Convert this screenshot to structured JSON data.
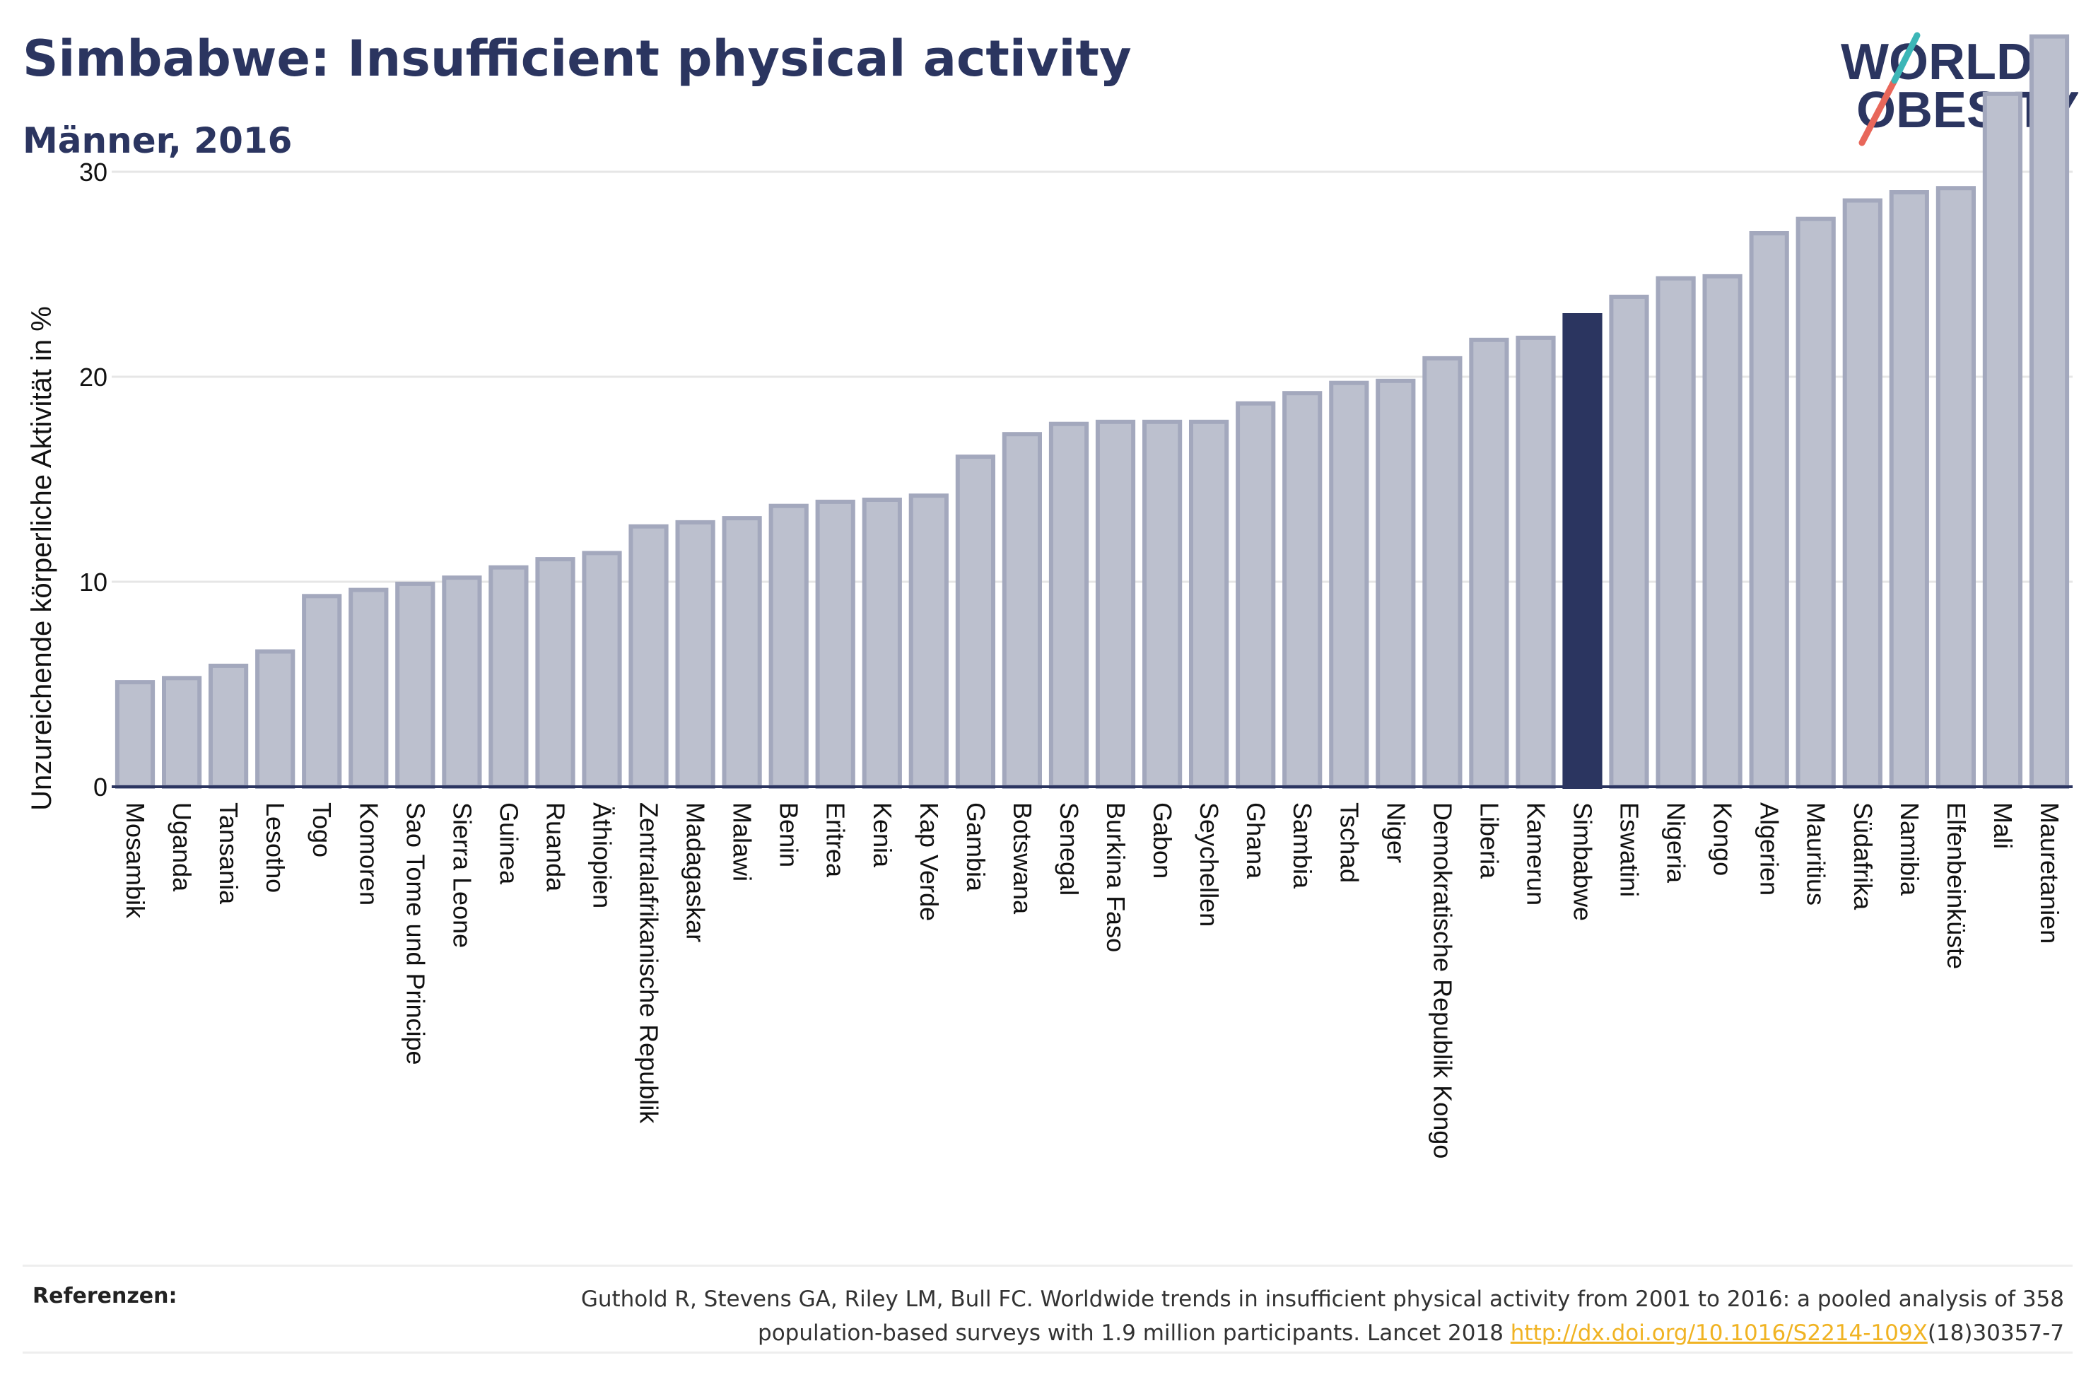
{
  "header": {
    "title": "Simbabwe: Insufficient physical activity",
    "subtitle": "Männer, 2016"
  },
  "logo": {
    "line1": "WORLD",
    "line2": "OBESITY",
    "colors": {
      "text": "#2b3560",
      "slash_red": "#e8675a",
      "slash_teal": "#3cb6b7"
    }
  },
  "footer": {
    "label": "Referenzen:",
    "citation_line1": "Guthold R, Stevens GA, Riley LM, Bull FC. Worldwide trends in insufficient physical activity from 2001 to 2016: a pooled analysis of 358",
    "citation_line2_pre": "population-based surveys with 1.9 million participants. Lancet 2018 ",
    "citation_link": "http://dx.doi.org/10.1016/S2214-109X",
    "citation_line2_post": "(18)30357-7"
  },
  "chart_data": {
    "type": "bar",
    "ylabel": "Unzureichende körperliche Aktivität in %",
    "ylim": [
      0,
      38
    ],
    "yticks": [
      0,
      10,
      20,
      30
    ],
    "grid": true,
    "highlight": "Simbabwe",
    "colors": {
      "bar": "#bcc0ce",
      "bar_edge": "#a3a8bd",
      "highlight": "#2b3560",
      "axis": "#2b3560",
      "grid": "#e6e6e6"
    },
    "categories": [
      "Mosambik",
      "Uganda",
      "Tansania",
      "Lesotho",
      "Togo",
      "Komoren",
      "Sao Tome und Principe",
      "Sierra Leone",
      "Guinea",
      "Ruanda",
      "Äthiopien",
      "Zentralafrikanische Republik",
      "Madagaskar",
      "Malawi",
      "Benin",
      "Eritrea",
      "Kenia",
      "Kap Verde",
      "Gambia",
      "Botswana",
      "Senegal",
      "Burkina Faso",
      "Gabon",
      "Seychellen",
      "Ghana",
      "Sambia",
      "Tschad",
      "Niger",
      "Demokratische Republik Kongo",
      "Liberia",
      "Kamerun",
      "Simbabwe",
      "Eswatini",
      "Nigeria",
      "Kongo",
      "Algerien",
      "Mauritius",
      "Südafrika",
      "Namibia",
      "Elfenbeinküste",
      "Mali",
      "Mauretanien"
    ],
    "values": [
      5.1,
      5.3,
      5.9,
      6.6,
      9.3,
      9.6,
      9.9,
      10.2,
      10.7,
      11.1,
      11.4,
      12.7,
      12.9,
      13.1,
      13.7,
      13.9,
      14.0,
      14.2,
      16.1,
      17.2,
      17.7,
      17.8,
      17.8,
      17.8,
      18.7,
      19.2,
      19.7,
      19.8,
      20.9,
      21.8,
      21.9,
      23.0,
      23.9,
      24.8,
      24.9,
      27.0,
      27.7,
      28.6,
      29.0,
      29.2,
      33.8,
      36.6
    ]
  }
}
